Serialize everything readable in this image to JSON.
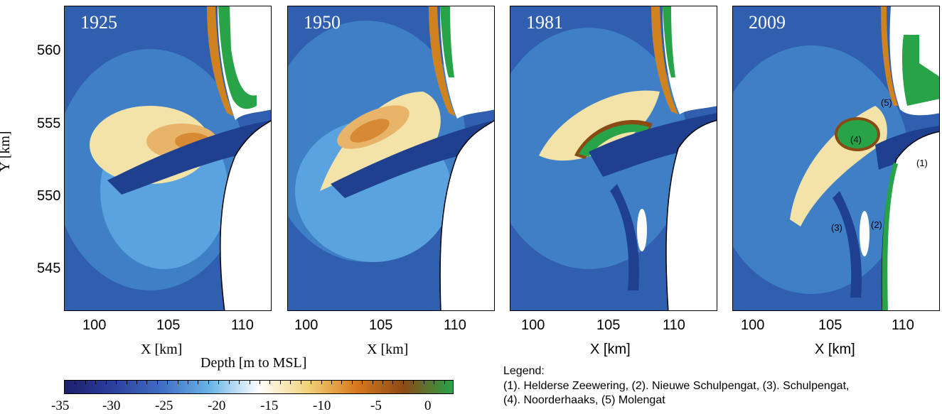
{
  "panels": [
    {
      "year": "1925",
      "x_label": "X [km]"
    },
    {
      "year": "1950",
      "x_label": "X [km]"
    },
    {
      "year": "1981",
      "x_label": "X [km]"
    },
    {
      "year": "2009",
      "x_label": "X [km]"
    }
  ],
  "y_axis_label": "Y [km]",
  "y_ticks": [
    "560",
    "555",
    "550",
    "545"
  ],
  "x_ticks": [
    "100",
    "105",
    "110"
  ],
  "colorbar": {
    "title": "Depth [m to MSL]",
    "ticks": [
      "-35",
      "-30",
      "-25",
      "-20",
      "-15",
      "-10",
      "-5",
      "0"
    ],
    "colors": [
      "#1d1f6b",
      "#2b3f9e",
      "#3f6ec4",
      "#6ab4e6",
      "#ffffff",
      "#f2d27a",
      "#d97a1e",
      "#8a4a14",
      "#28a348"
    ]
  },
  "labels": {
    "1": "(1)",
    "2": "(2)",
    "3": "(3)",
    "4": "(4)",
    "5": "(5)"
  },
  "legend": {
    "title": "Legend:",
    "line1": "(1). Helderse Zeewering,  (2). Nieuwe Schulpengat, (3). Schulpengat,",
    "line2": "(4). Noorderhaaks, (5) Molengat"
  }
}
